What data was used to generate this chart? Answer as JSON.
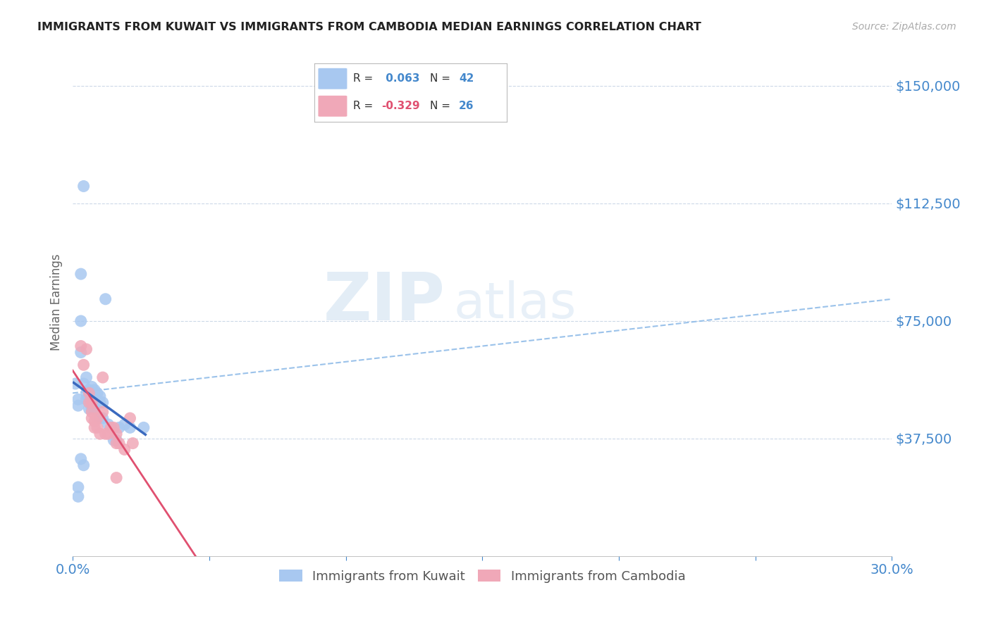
{
  "title": "IMMIGRANTS FROM KUWAIT VS IMMIGRANTS FROM CAMBODIA MEDIAN EARNINGS CORRELATION CHART",
  "source": "Source: ZipAtlas.com",
  "ylabel": "Median Earnings",
  "ytick_vals": [
    37500,
    75000,
    112500,
    150000
  ],
  "xlim": [
    0.0,
    0.3
  ],
  "ylim": [
    0,
    162000
  ],
  "kuwait_color": "#a8c8f0",
  "cambodia_color": "#f0a8b8",
  "kuwait_line_color": "#3a6abf",
  "cambodia_line_color": "#e05070",
  "dashed_line_color": "#90bce8",
  "legend_kuwait_label": "Immigrants from Kuwait",
  "legend_cambodia_label": "Immigrants from Cambodia",
  "R_kuwait": 0.063,
  "N_kuwait": 42,
  "R_cambodia": -0.329,
  "N_cambodia": 26,
  "watermark_zip": "ZIP",
  "watermark_atlas": "atlas",
  "title_color": "#222222",
  "axis_color": "#4488cc",
  "kuwait_points": [
    [
      0.001,
      55000
    ],
    [
      0.002,
      50000
    ],
    [
      0.002,
      48000
    ],
    [
      0.003,
      90000
    ],
    [
      0.003,
      75000
    ],
    [
      0.003,
      65000
    ],
    [
      0.004,
      118000
    ],
    [
      0.004,
      55000
    ],
    [
      0.005,
      57000
    ],
    [
      0.005,
      52000
    ],
    [
      0.005,
      50000
    ],
    [
      0.006,
      53000
    ],
    [
      0.006,
      51000
    ],
    [
      0.006,
      49000
    ],
    [
      0.006,
      47000
    ],
    [
      0.007,
      54000
    ],
    [
      0.007,
      51000
    ],
    [
      0.007,
      49000
    ],
    [
      0.007,
      47000
    ],
    [
      0.008,
      53000
    ],
    [
      0.008,
      51000
    ],
    [
      0.008,
      49000
    ],
    [
      0.008,
      47000
    ],
    [
      0.009,
      52000
    ],
    [
      0.009,
      49000
    ],
    [
      0.01,
      51000
    ],
    [
      0.01,
      49000
    ],
    [
      0.01,
      44000
    ],
    [
      0.011,
      49000
    ],
    [
      0.011,
      44000
    ],
    [
      0.012,
      82000
    ],
    [
      0.013,
      42000
    ],
    [
      0.015,
      37000
    ],
    [
      0.016,
      37000
    ],
    [
      0.017,
      41000
    ],
    [
      0.019,
      42000
    ],
    [
      0.021,
      41000
    ],
    [
      0.026,
      41000
    ],
    [
      0.003,
      31000
    ],
    [
      0.004,
      29000
    ],
    [
      0.002,
      22000
    ],
    [
      0.002,
      19000
    ]
  ],
  "cambodia_points": [
    [
      0.003,
      67000
    ],
    [
      0.004,
      61000
    ],
    [
      0.005,
      66000
    ],
    [
      0.006,
      52000
    ],
    [
      0.006,
      49000
    ],
    [
      0.007,
      46000
    ],
    [
      0.007,
      49000
    ],
    [
      0.007,
      44000
    ],
    [
      0.008,
      43000
    ],
    [
      0.008,
      41000
    ],
    [
      0.009,
      44000
    ],
    [
      0.009,
      41000
    ],
    [
      0.01,
      39000
    ],
    [
      0.011,
      57000
    ],
    [
      0.011,
      46000
    ],
    [
      0.012,
      39000
    ],
    [
      0.013,
      39000
    ],
    [
      0.014,
      41000
    ],
    [
      0.015,
      41000
    ],
    [
      0.016,
      39000
    ],
    [
      0.016,
      36000
    ],
    [
      0.017,
      36000
    ],
    [
      0.019,
      34000
    ],
    [
      0.021,
      44000
    ],
    [
      0.022,
      36000
    ],
    [
      0.016,
      25000
    ]
  ]
}
